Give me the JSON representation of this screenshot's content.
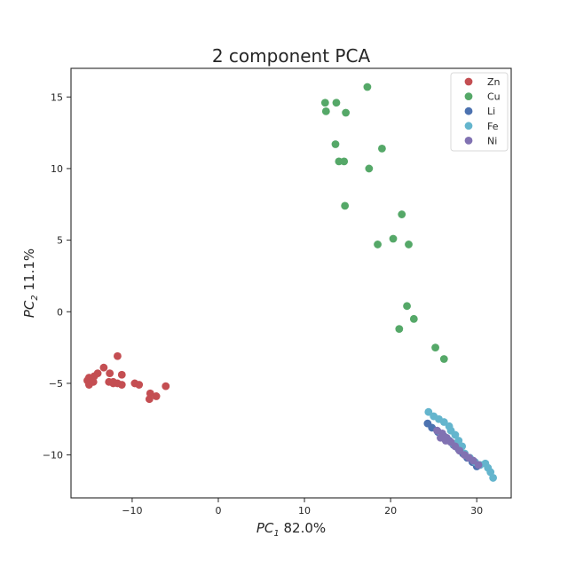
{
  "chart_data": {
    "type": "scatter",
    "title": "2 component PCA",
    "xlabel": {
      "base": "PC",
      "sub": "1",
      "suffix": " 82.0%"
    },
    "ylabel": {
      "base": "PC",
      "sub": "2",
      "suffix": " 11.1%"
    },
    "xlim": [
      -17.1,
      34.0
    ],
    "ylim": [
      -13.0,
      17.0
    ],
    "xticks": [
      -10,
      0,
      10,
      20,
      30
    ],
    "yticks": [
      -10,
      -5,
      0,
      5,
      10,
      15
    ],
    "xtick_labels": [
      "−10",
      "0",
      "10",
      "20",
      "30"
    ],
    "ytick_labels": [
      "−10",
      "−5",
      "0",
      "5",
      "10",
      "15"
    ],
    "grid": false,
    "legend_position": "top-right",
    "series": [
      {
        "name": "Zn",
        "color": "#c44e52",
        "points": [
          [
            -11.7,
            -3.1
          ],
          [
            -13.3,
            -3.9
          ],
          [
            -14.0,
            -4.3
          ],
          [
            -14.4,
            -4.5
          ],
          [
            -15.0,
            -4.6
          ],
          [
            -15.2,
            -4.8
          ],
          [
            -14.5,
            -4.9
          ],
          [
            -12.6,
            -4.3
          ],
          [
            -11.2,
            -4.4
          ],
          [
            -12.2,
            -4.9
          ],
          [
            -12.7,
            -4.9
          ],
          [
            -11.7,
            -5.0
          ],
          [
            -11.2,
            -5.1
          ],
          [
            -12.2,
            -5.0
          ],
          [
            -9.7,
            -5.0
          ],
          [
            -9.2,
            -5.1
          ],
          [
            -15.0,
            -5.1
          ],
          [
            -7.9,
            -5.7
          ],
          [
            -7.2,
            -5.9
          ],
          [
            -8.0,
            -6.1
          ],
          [
            -6.1,
            -5.2
          ]
        ]
      },
      {
        "name": "Cu",
        "color": "#55a868",
        "points": [
          [
            17.3,
            15.7
          ],
          [
            12.4,
            14.6
          ],
          [
            13.7,
            14.6
          ],
          [
            12.5,
            14.0
          ],
          [
            14.8,
            13.9
          ],
          [
            13.6,
            11.7
          ],
          [
            19.0,
            11.4
          ],
          [
            14.0,
            10.5
          ],
          [
            14.6,
            10.5
          ],
          [
            17.5,
            10.0
          ],
          [
            14.7,
            7.4
          ],
          [
            21.3,
            6.8
          ],
          [
            20.3,
            5.1
          ],
          [
            18.5,
            4.7
          ],
          [
            22.1,
            4.7
          ],
          [
            21.9,
            0.4
          ],
          [
            22.7,
            -0.5
          ],
          [
            21.0,
            -1.2
          ],
          [
            25.2,
            -2.5
          ],
          [
            26.2,
            -3.3
          ]
        ]
      },
      {
        "name": "Li",
        "color": "#4c72b0",
        "points": [
          [
            24.3,
            -7.8
          ],
          [
            24.8,
            -8.1
          ],
          [
            25.5,
            -8.4
          ],
          [
            26.2,
            -8.7
          ],
          [
            26.8,
            -9.0
          ],
          [
            27.3,
            -9.3
          ],
          [
            27.9,
            -9.6
          ],
          [
            28.4,
            -9.9
          ],
          [
            28.9,
            -10.2
          ],
          [
            29.5,
            -10.5
          ],
          [
            30.0,
            -10.8
          ]
        ]
      },
      {
        "name": "Fe",
        "color": "#64b5cd",
        "points": [
          [
            24.4,
            -7.0
          ],
          [
            25.0,
            -7.3
          ],
          [
            25.6,
            -7.5
          ],
          [
            26.2,
            -7.7
          ],
          [
            26.8,
            -8.0
          ],
          [
            27.0,
            -8.3
          ],
          [
            27.5,
            -8.6
          ],
          [
            27.9,
            -9.0
          ],
          [
            28.3,
            -9.4
          ],
          [
            25.9,
            -8.6
          ],
          [
            27.2,
            -9.2
          ],
          [
            28.6,
            -9.9
          ],
          [
            29.2,
            -10.2
          ],
          [
            29.8,
            -10.5
          ],
          [
            30.4,
            -10.7
          ],
          [
            31.0,
            -10.6
          ],
          [
            31.3,
            -10.9
          ],
          [
            31.6,
            -11.2
          ],
          [
            31.9,
            -11.6
          ]
        ]
      },
      {
        "name": "Ni",
        "color": "#8172b2",
        "points": [
          [
            25.4,
            -8.3
          ],
          [
            26.0,
            -8.5
          ],
          [
            26.5,
            -8.8
          ],
          [
            27.0,
            -9.1
          ],
          [
            27.5,
            -9.4
          ],
          [
            28.0,
            -9.7
          ],
          [
            28.6,
            -10.0
          ],
          [
            29.1,
            -10.2
          ],
          [
            29.6,
            -10.4
          ],
          [
            30.2,
            -10.7
          ],
          [
            25.8,
            -8.8
          ],
          [
            26.4,
            -9.0
          ]
        ]
      }
    ]
  }
}
